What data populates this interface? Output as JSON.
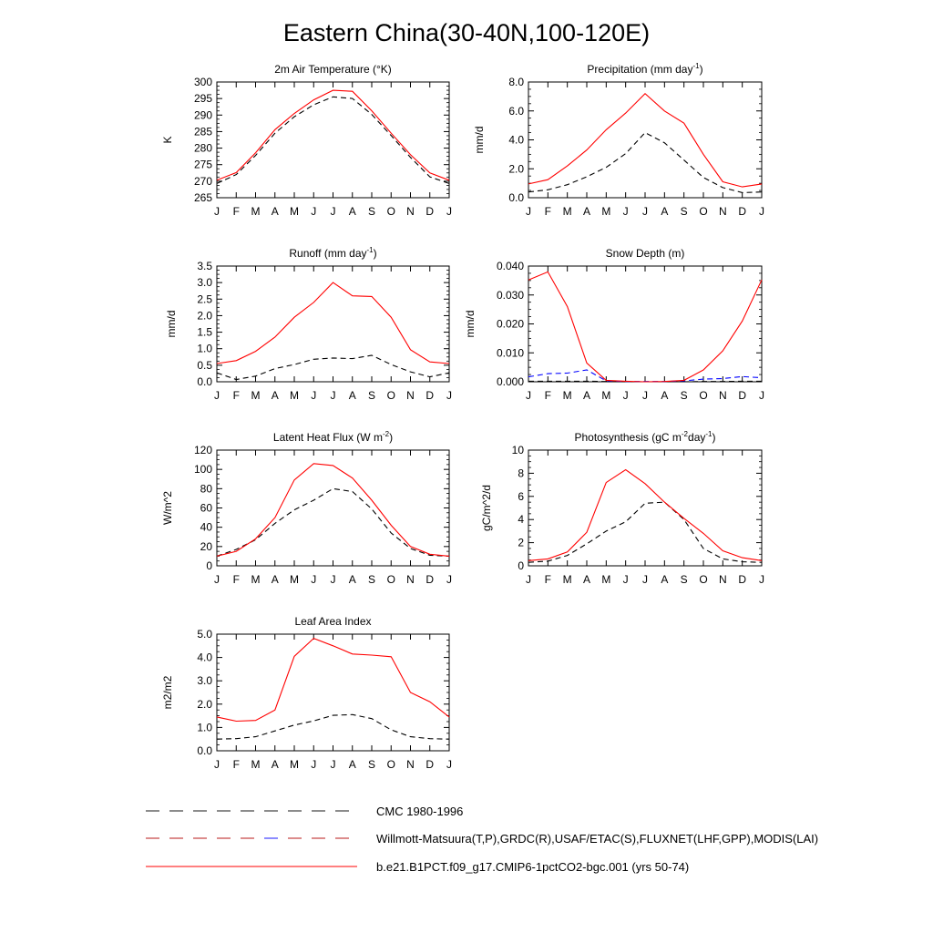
{
  "figure": {
    "title": "Eastern China(30-40N,100-120E)"
  },
  "chart_data": [
    {
      "type": "line",
      "title": "2m Air Temperature (°K)",
      "ylabel": "K",
      "ylim": [
        265,
        300
      ],
      "yticks": [
        "300",
        "295",
        "290",
        "285",
        "280",
        "275",
        "270",
        "265"
      ],
      "ytick_values": [
        300,
        295,
        290,
        285,
        280,
        275,
        270,
        265
      ],
      "x": [
        "J",
        "F",
        "M",
        "A",
        "M",
        "J",
        "J",
        "A",
        "S",
        "O",
        "N",
        "D",
        "J"
      ],
      "series": [
        {
          "color": "#000000",
          "dash": "dashed",
          "values": [
            269.3,
            272.0,
            277.8,
            284.5,
            289.5,
            293.1,
            295.5,
            295.0,
            290.2,
            283.8,
            277.2,
            271.3,
            269.3
          ]
        },
        {
          "color": "#ff0000",
          "dash": "solid",
          "values": [
            270.3,
            272.6,
            278.6,
            285.6,
            290.5,
            294.6,
            297.5,
            297.2,
            291.3,
            284.5,
            278.0,
            272.5,
            270.3
          ]
        }
      ]
    },
    {
      "type": "line",
      "title": "Precipitation (mm day-1)",
      "ylabel": "mm/d",
      "ylim": [
        0,
        8
      ],
      "yticks": [
        "8.0",
        "6.0",
        "4.0",
        "2.0",
        "0.0"
      ],
      "ytick_values": [
        8,
        6,
        4,
        2,
        0
      ],
      "x": [
        "J",
        "F",
        "M",
        "A",
        "M",
        "J",
        "J",
        "A",
        "S",
        "O",
        "N",
        "D",
        "J"
      ],
      "series": [
        {
          "color": "#000000",
          "dash": "dashed",
          "values": [
            0.4,
            0.55,
            0.9,
            1.45,
            2.1,
            3.05,
            4.5,
            3.8,
            2.6,
            1.4,
            0.7,
            0.35,
            0.4
          ]
        },
        {
          "color": "#ff0000",
          "dash": "solid",
          "values": [
            0.95,
            1.25,
            2.2,
            3.3,
            4.7,
            5.85,
            7.2,
            6.0,
            5.15,
            3.0,
            1.1,
            0.75,
            0.95
          ]
        }
      ]
    },
    {
      "type": "line",
      "title": "Runoff (mm day-1)",
      "ylabel": "mm/d",
      "ylim": [
        0,
        3.5
      ],
      "yticks": [
        "3.5",
        "3.0",
        "2.5",
        "2.0",
        "1.5",
        "1.0",
        "0.5",
        "0.0"
      ],
      "ytick_values": [
        3.5,
        3.0,
        2.5,
        2.0,
        1.5,
        1.0,
        0.5,
        0.0
      ],
      "x": [
        "J",
        "F",
        "M",
        "A",
        "M",
        "J",
        "J",
        "A",
        "S",
        "O",
        "N",
        "D",
        "J"
      ],
      "series": [
        {
          "color": "#000000",
          "dash": "dashed",
          "values": [
            0.27,
            0.07,
            0.17,
            0.4,
            0.52,
            0.68,
            0.72,
            0.7,
            0.8,
            0.52,
            0.3,
            0.15,
            0.27
          ]
        },
        {
          "color": "#ff0000",
          "dash": "solid",
          "values": [
            0.55,
            0.64,
            0.92,
            1.35,
            1.95,
            2.4,
            3.0,
            2.6,
            2.58,
            1.95,
            0.97,
            0.6,
            0.55
          ]
        }
      ]
    },
    {
      "type": "line",
      "title": "Snow Depth (m)",
      "ylabel": "mm/d",
      "ylim": [
        0,
        0.04
      ],
      "yticks": [
        "0.040",
        "0.030",
        "0.020",
        "0.010",
        "0.000"
      ],
      "ytick_values": [
        0.04,
        0.03,
        0.02,
        0.01,
        0.0
      ],
      "x": [
        "J",
        "F",
        "M",
        "A",
        "M",
        "J",
        "J",
        "A",
        "S",
        "O",
        "N",
        "D",
        "J"
      ],
      "series": [
        {
          "color": "#000000",
          "dash": "dashed",
          "values": [
            0.0002,
            0.0002,
            0.0002,
            0.0002,
            0.0001,
            0.0,
            0.0,
            0.0,
            0.0,
            0.0001,
            0.0001,
            0.0002,
            0.0002
          ]
        },
        {
          "color": "#0000ff",
          "dash": "dashed",
          "values": [
            0.0017,
            0.0028,
            0.003,
            0.0041,
            0.0003,
            0.0001,
            0.0001,
            0.0001,
            0.0003,
            0.0009,
            0.0011,
            0.0018,
            0.0014
          ]
        },
        {
          "color": "#ff0000",
          "dash": "solid",
          "values": [
            0.0352,
            0.038,
            0.026,
            0.0065,
            0.0005,
            0.0002,
            0.0,
            0.0001,
            0.0005,
            0.0041,
            0.0107,
            0.021,
            0.0352
          ]
        }
      ]
    },
    {
      "type": "line",
      "title": "Latent Heat Flux (W m-2)",
      "ylabel": "W/m^2",
      "ylim": [
        0,
        120
      ],
      "yticks": [
        "120",
        "100",
        "80",
        "60",
        "40",
        "20",
        "0"
      ],
      "ytick_values": [
        120,
        100,
        80,
        60,
        40,
        20,
        0
      ],
      "x": [
        "J",
        "F",
        "M",
        "A",
        "M",
        "J",
        "J",
        "A",
        "S",
        "O",
        "N",
        "D",
        "J"
      ],
      "series": [
        {
          "color": "#000000",
          "dash": "dashed",
          "values": [
            10,
            17,
            27,
            44,
            58,
            68,
            80,
            77,
            59,
            34,
            18,
            11,
            10
          ]
        },
        {
          "color": "#ff0000",
          "dash": "solid",
          "values": [
            10,
            15,
            28,
            50,
            89,
            106,
            104,
            91,
            68,
            42,
            20,
            12,
            10
          ]
        }
      ]
    },
    {
      "type": "line",
      "title": "Photosynthesis (gC m-2day-1)",
      "ylabel": "gC/m^2/d",
      "ylim": [
        0,
        10
      ],
      "yticks": [
        "10",
        "8",
        "6",
        "4",
        "2",
        "0"
      ],
      "ytick_values": [
        10,
        8,
        6,
        4,
        2,
        0
      ],
      "x": [
        "J",
        "F",
        "M",
        "A",
        "M",
        "J",
        "J",
        "A",
        "S",
        "O",
        "N",
        "D",
        "J"
      ],
      "series": [
        {
          "color": "#000000",
          "dash": "dashed",
          "values": [
            0.3,
            0.4,
            0.9,
            1.9,
            3.0,
            3.8,
            5.4,
            5.5,
            4.0,
            1.5,
            0.6,
            0.35,
            0.3
          ]
        },
        {
          "color": "#ff0000",
          "dash": "solid",
          "values": [
            0.45,
            0.6,
            1.2,
            2.9,
            7.2,
            8.3,
            7.1,
            5.5,
            4.1,
            2.8,
            1.3,
            0.7,
            0.45
          ]
        }
      ]
    },
    {
      "type": "line",
      "title": "Leaf Area Index",
      "ylabel": "m2/m2",
      "ylim": [
        0,
        5
      ],
      "yticks": [
        "5.0",
        "4.0",
        "3.0",
        "2.0",
        "1.0",
        "0.0"
      ],
      "ytick_values": [
        5,
        4,
        3,
        2,
        1,
        0
      ],
      "x": [
        "J",
        "F",
        "M",
        "A",
        "M",
        "J",
        "J",
        "A",
        "S",
        "O",
        "N",
        "D",
        "J"
      ],
      "series": [
        {
          "color": "#000000",
          "dash": "dashed",
          "values": [
            0.5,
            0.52,
            0.6,
            0.85,
            1.1,
            1.28,
            1.52,
            1.55,
            1.38,
            0.9,
            0.6,
            0.52,
            0.5
          ]
        },
        {
          "color": "#ff0000",
          "dash": "solid",
          "values": [
            1.45,
            1.27,
            1.3,
            1.75,
            4.05,
            4.82,
            4.5,
            4.15,
            4.1,
            4.03,
            2.5,
            2.1,
            1.45
          ]
        }
      ]
    }
  ],
  "legend": [
    {
      "label": "CMC 1980-1996",
      "colors": [
        "#000000"
      ],
      "dash": "dashed"
    },
    {
      "label": "Willmott-Matsuura(T,P),GRDC(R),USAF/ETAC(S),FLUXNET(LHF,GPP),MODIS(LAI)",
      "colors": [
        "#b00000",
        "#0000ff"
      ],
      "dash": "dashed"
    },
    {
      "label": "b.e21.B1PCT.f09_g17.CMIP6-1pctCO2-bgc.001 (yrs 50-74)",
      "colors": [
        "#ff0000"
      ],
      "dash": "solid"
    }
  ]
}
